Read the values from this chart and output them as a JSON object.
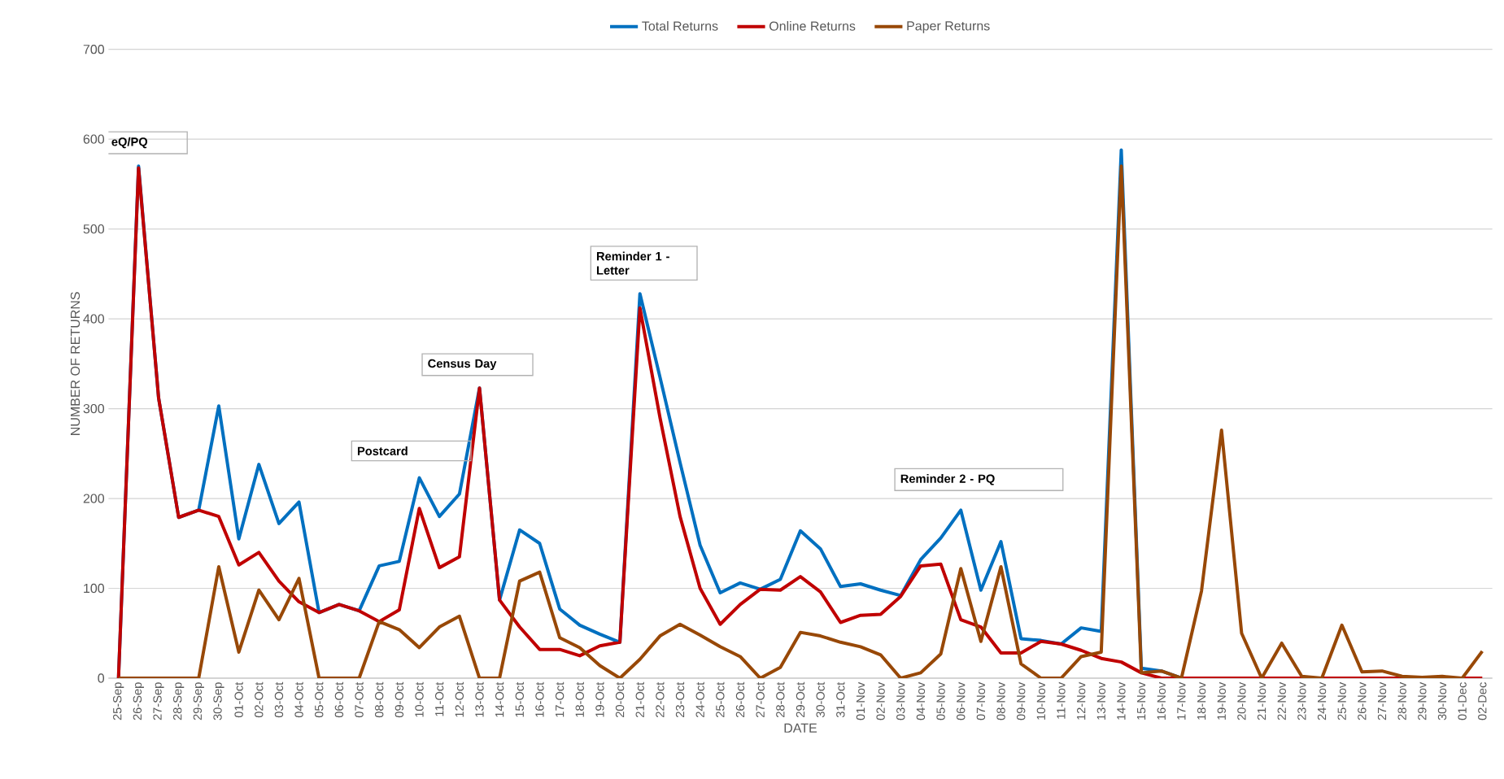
{
  "chart_data": {
    "type": "line",
    "xlabel": "DATE",
    "ylabel": "NUMBER OF RETURNS",
    "categories": [
      "25-Sep",
      "26-Sep",
      "27-Sep",
      "28-Sep",
      "29-Sep",
      "30-Sep",
      "01-Oct",
      "02-Oct",
      "03-Oct",
      "04-Oct",
      "05-Oct",
      "06-Oct",
      "07-Oct",
      "08-Oct",
      "09-Oct",
      "10-Oct",
      "11-Oct",
      "12-Oct",
      "13-Oct",
      "14-Oct",
      "15-Oct",
      "16-Oct",
      "17-Oct",
      "18-Oct",
      "19-Oct",
      "20-Oct",
      "21-Oct",
      "22-Oct",
      "23-Oct",
      "24-Oct",
      "25-Oct",
      "26-Oct",
      "27-Oct",
      "28-Oct",
      "29-Oct",
      "30-Oct",
      "31-Oct",
      "01-Nov",
      "02-Nov",
      "03-Nov",
      "04-Nov",
      "05-Nov",
      "06-Nov",
      "07-Nov",
      "08-Nov",
      "09-Nov",
      "10-Nov",
      "11-Nov",
      "12-Nov",
      "13-Nov",
      "14-Nov",
      "15-Nov",
      "16-Nov",
      "17-Nov",
      "18-Nov",
      "19-Nov",
      "20-Nov",
      "21-Nov",
      "22-Nov",
      "23-Nov",
      "24-Nov",
      "25-Nov",
      "26-Nov",
      "27-Nov",
      "28-Nov",
      "29-Nov",
      "30-Nov",
      "01-Dec",
      "02-Dec"
    ],
    "series": [
      {
        "name": "Total Returns",
        "color": "#0070c0",
        "values": [
          0,
          570,
          312,
          179,
          187,
          303,
          155,
          238,
          172,
          196,
          73,
          82,
          75,
          125,
          130,
          223,
          180,
          205,
          323,
          87,
          165,
          150,
          77,
          59,
          49,
          40,
          428,
          335,
          240,
          148,
          95,
          106,
          99,
          110,
          164,
          144,
          102,
          105,
          98,
          92,
          132,
          156,
          187,
          98,
          152,
          44,
          42,
          38,
          56,
          52,
          588,
          11,
          8,
          0,
          null,
          null,
          null,
          null,
          null,
          null,
          null,
          null,
          null,
          null,
          null,
          null,
          null,
          null,
          null
        ]
      },
      {
        "name": "Online Returns",
        "color": "#c00000",
        "values": [
          0,
          568,
          312,
          179,
          187,
          180,
          126,
          140,
          108,
          85,
          73,
          82,
          75,
          63,
          76,
          189,
          123,
          135,
          323,
          87,
          57,
          32,
          32,
          25,
          36,
          40,
          412,
          290,
          180,
          100,
          60,
          82,
          99,
          98,
          113,
          96,
          62,
          70,
          71,
          91,
          125,
          127,
          65,
          57,
          28,
          28,
          41,
          38,
          31,
          22,
          18,
          6,
          0,
          0,
          0,
          0,
          0,
          0,
          0,
          0,
          0,
          0,
          0,
          0,
          0,
          0,
          0,
          0,
          0
        ]
      },
      {
        "name": "Paper Returns",
        "color": "#984807",
        "values": [
          0,
          0,
          0,
          0,
          0,
          124,
          29,
          98,
          65,
          111,
          0,
          0,
          0,
          63,
          54,
          34,
          57,
          69,
          0,
          0,
          108,
          118,
          45,
          34,
          14,
          0,
          21,
          47,
          60,
          48,
          35,
          24,
          0,
          12,
          51,
          47,
          40,
          35,
          26,
          0,
          6,
          27,
          122,
          41,
          124,
          16,
          0,
          0,
          24,
          29,
          570,
          6,
          8,
          0,
          97,
          276,
          50,
          0,
          39,
          2,
          0,
          59,
          7,
          8,
          2,
          1,
          2,
          0,
          30
        ]
      }
    ],
    "ylim": [
      0,
      700
    ],
    "yticks": [
      0,
      100,
      200,
      300,
      400,
      500,
      600,
      700
    ],
    "grid": "y",
    "legend": "top",
    "annotations": [
      "eQ/PQ",
      "Postcard",
      "Census Day",
      "Reminder 1 - Letter",
      "Reminder 2 - PQ"
    ]
  }
}
